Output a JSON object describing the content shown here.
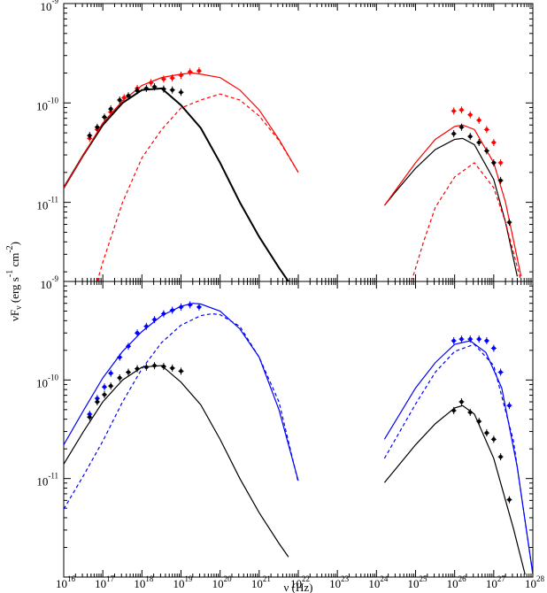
{
  "chart_data": [
    {
      "type": "line",
      "log_x": true,
      "log_y": true,
      "minor_ticks": true,
      "xlim": [
        1e+16,
        1e+28
      ],
      "ylim": [
        1.6e-12,
        1e-09
      ],
      "xticks": [
        1e+16,
        1e+17,
        1e+18,
        1e+19,
        1e+20,
        1e+21,
        1e+22,
        1e+23,
        1e+24,
        1e+25,
        1e+26,
        1e+27,
        1e+28
      ],
      "yticks": [
        {
          "value": 1e-11,
          "label": "10",
          "exponent": "-11"
        },
        {
          "value": 1e-10,
          "label": "10",
          "exponent": "-10"
        },
        {
          "value": 1e-09,
          "label": "10",
          "exponent": "-9"
        }
      ],
      "ylabel": [
        {
          "text": "νF"
        },
        {
          "text": "ν",
          "shift": "sub"
        },
        {
          "text": " (erg s"
        },
        {
          "text": "-1",
          "shift": "sup"
        },
        {
          "text": " cm"
        },
        {
          "text": "-2",
          "shift": "sup"
        },
        {
          "text": ")"
        }
      ],
      "series": [
        {
          "style": "solid",
          "color": "#000000",
          "width": 2,
          "x": [
            1e+16,
            3.2e+16,
            1e+17,
            3.2e+17,
            1e+18,
            3.2e+18,
            1e+19,
            3.2e+19,
            1e+20,
            3.2e+20,
            1e+21,
            3.2e+21,
            5.6e+21
          ],
          "values": [
            1.4e-11,
            3e-11,
            6e-11,
            1e-10,
            1.35e-10,
            1.4e-10,
            9.5e-11,
            5.6e-11,
            2.5e-11,
            1e-11,
            4.5e-12,
            2.2e-12,
            1.6e-12
          ]
        },
        {
          "style": "solid",
          "color": "#ff0000",
          "width": 1.2,
          "x": [
            1e+16,
            3.2e+16,
            1e+17,
            3.2e+17,
            1e+18,
            3.2e+18,
            1e+19,
            2e+19,
            3.2e+19,
            1e+20,
            3.2e+20,
            1e+21,
            3.2e+21,
            1e+22
          ],
          "values": [
            1.4e-11,
            3e-11,
            6.3e-11,
            1.05e-10,
            1.5e-10,
            1.8e-10,
            1.95e-10,
            2e-10,
            1.95e-10,
            1.8e-10,
            1.35e-10,
            8.5e-11,
            4.3e-11,
            2e-11
          ]
        },
        {
          "style": "dashed",
          "color": "#ff0000",
          "width": 1.2,
          "x": [
            7.2e+16,
            1e+17,
            3.2e+17,
            1e+18,
            3.2e+18,
            1e+19,
            3.2e+19,
            1e+20,
            3.2e+20,
            1e+21,
            3.2e+21,
            1e+22
          ],
          "values": [
            1.6e-12,
            2.5e-12,
            1e-11,
            2.8e-11,
            5.4e-11,
            8.9e-11,
            1.07e-10,
            1.23e-10,
            1.07e-10,
            7.4e-11,
            4.2e-11,
            2e-11
          ]
        },
        {
          "style": "solid",
          "color": "#000000",
          "width": 1.2,
          "x": [
            1.6e+24,
            3.2e+24,
            1e+25,
            3.2e+25,
            1e+26,
            1.6e+26,
            3.2e+26,
            1e+27,
            2e+27,
            4e+27
          ],
          "values": [
            9.3e-12,
            1.3e-11,
            2.2e-11,
            3.4e-11,
            4.3e-11,
            4.4e-11,
            3.8e-11,
            1.7e-11,
            6.3e-12,
            1.8e-12
          ]
        },
        {
          "style": "solid",
          "color": "#ff0000",
          "width": 1.2,
          "x": [
            1.6e+24,
            1e+25,
            3.2e+25,
            1e+26,
            1.6e+26,
            3.2e+26,
            1e+27,
            2e+27,
            5e+27
          ],
          "values": [
            9.3e-12,
            2.5e-11,
            4.3e-11,
            5.8e-11,
            6e-11,
            5.4e-11,
            2.5e-11,
            1e-11,
            1.8e-12
          ]
        },
        {
          "style": "dashed",
          "color": "#ff0000",
          "width": 1.2,
          "x": [
            7.9e+24,
            1.6e+25,
            3.2e+25,
            1e+26,
            3.2e+26,
            1e+27,
            2e+27,
            5e+27
          ],
          "values": [
            1.6e-12,
            4e-12,
            8.9e-12,
            1.8e-11,
            2.5e-11,
            1.4e-11,
            6.3e-12,
            1.6e-12
          ]
        },
        {
          "style": "markers",
          "color": "#ff0000",
          "x": [
            4.6e+16,
            7.2e+16,
            1.6e+17,
            3.5e+17,
            7.6e+17,
            1.7e+18,
            3.6e+18,
            6e+18,
            1e+19,
            1.7e+19,
            2.9e+19
          ],
          "values": [
            4.4e-11,
            5.4e-11,
            8.1e-11,
            1.13e-10,
            1.4e-10,
            1.6e-10,
            1.74e-10,
            1.78e-10,
            1.9e-10,
            2.05e-10,
            2.1e-10
          ]
        },
        {
          "style": "markers",
          "color": "#000000",
          "x": [
            4.6e+16,
            7.2e+16,
            1.1e+17,
            1.6e+17,
            2.7e+17,
            4.5e+17,
            7.6e+17,
            1.3e+18,
            2.1e+18,
            3.6e+18,
            6e+18,
            1e+19
          ],
          "values": [
            4.7e-11,
            5.7e-11,
            7.2e-11,
            8.7e-11,
            1.07e-10,
            1.18e-10,
            1.33e-10,
            1.4e-10,
            1.45e-10,
            1.38e-10,
            1.35e-10,
            1.28e-10
          ]
        },
        {
          "style": "markers",
          "color": "#ff0000",
          "x": [
            9.5e+25,
            1.5e+26,
            2.5e+26,
            4.2e+26,
            6.6e+26,
            1e+27,
            1.5e+27
          ],
          "values": [
            8.3e-11,
            8.5e-11,
            7.6e-11,
            6.7e-11,
            5.4e-11,
            4e-11,
            2.5e-11
          ]
        },
        {
          "style": "markers",
          "color": "#000000",
          "x": [
            9.5e+25,
            1.5e+26,
            2.5e+26,
            4.2e+26,
            6.6e+26,
            1e+27,
            1.5e+27,
            2.5e+27
          ],
          "values": [
            4.9e-11,
            5.7e-11,
            4.6e-11,
            4e-11,
            3.3e-11,
            2.5e-11,
            1.66e-11,
            6.3e-12
          ]
        }
      ]
    },
    {
      "type": "line",
      "log_x": true,
      "log_y": true,
      "minor_ticks": true,
      "xlim": [
        1e+16,
        1e+28
      ],
      "ylim": [
        1e-12,
        1e-09
      ],
      "xticks": [
        {
          "value": 1e+16,
          "label": "10",
          "exponent": "16"
        },
        {
          "value": 1e+17,
          "label": "10",
          "exponent": "17"
        },
        {
          "value": 1e+18,
          "label": "10",
          "exponent": "18"
        },
        {
          "value": 1e+19,
          "label": "10",
          "exponent": "19"
        },
        {
          "value": 1e+20,
          "label": "10",
          "exponent": "20"
        },
        {
          "value": 1e+21,
          "label": "10",
          "exponent": "21"
        },
        {
          "value": 1e+22,
          "label": "10",
          "exponent": "22"
        },
        {
          "value": 1e+23,
          "label": "10",
          "exponent": "23"
        },
        {
          "value": 1e+24,
          "label": "10",
          "exponent": "24"
        },
        {
          "value": 1e+25,
          "label": "10",
          "exponent": "25"
        },
        {
          "value": 1e+26,
          "label": "10",
          "exponent": "26"
        },
        {
          "value": 1e+27,
          "label": "10",
          "exponent": "27"
        },
        {
          "value": 1e+28,
          "label": "10",
          "exponent": "28"
        }
      ],
      "yticks": [
        {
          "value": 1e-11,
          "label": "10",
          "exponent": "-11"
        },
        {
          "value": 1e-10,
          "label": "10",
          "exponent": "-10"
        },
        {
          "value": 1e-09,
          "label": "10",
          "exponent": "-9"
        }
      ],
      "xlabel": "ν (Hz)",
      "series": [
        {
          "style": "solid",
          "color": "#000000",
          "width": 1.2,
          "x": [
            1e+16,
            3.2e+16,
            1e+17,
            3.2e+17,
            1e+18,
            3.2e+18,
            1e+19,
            3.2e+19,
            1e+20,
            3.2e+20,
            1e+21,
            3.2e+21,
            5.6e+21
          ],
          "values": [
            1.4e-11,
            3e-11,
            6e-11,
            1e-10,
            1.35e-10,
            1.4e-10,
            9.5e-11,
            5.6e-11,
            2.5e-11,
            1e-11,
            4.5e-12,
            2.2e-12,
            1.6e-12
          ]
        },
        {
          "style": "solid",
          "color": "#0000ff",
          "width": 1.2,
          "x": [
            1e+16,
            3.2e+16,
            1e+17,
            3.2e+17,
            1e+18,
            3.2e+18,
            1e+19,
            2e+19,
            3.2e+19,
            1e+20,
            3.2e+20,
            1e+21,
            3.2e+21,
            1e+22
          ],
          "values": [
            2.2e-11,
            4.9e-11,
            1.05e-10,
            1.95e-10,
            3.1e-10,
            4.5e-10,
            5.6e-10,
            6e-10,
            5.9e-10,
            5e-10,
            3.3e-10,
            1.7e-10,
            5e-11,
            9.5e-12
          ]
        },
        {
          "style": "dashed",
          "color": "#0000ff",
          "width": 1.2,
          "x": [
            1e+16,
            3.2e+16,
            1e+17,
            3.2e+17,
            1e+18,
            3.2e+18,
            1e+19,
            3.2e+19,
            6.3e+19,
            1e+20,
            3.2e+20,
            1e+21,
            3.2e+21,
            1e+22
          ],
          "values": [
            4.9e-12,
            1.07e-11,
            2.4e-11,
            6e-11,
            1.3e-10,
            2.4e-10,
            3.6e-10,
            4.5e-10,
            4.7e-10,
            4.6e-10,
            3.5e-10,
            1.7e-10,
            6e-11,
            9.1e-12
          ]
        },
        {
          "style": "solid",
          "color": "#0000ff",
          "width": 1.2,
          "x": [
            1.6e+24,
            1e+25,
            3.2e+25,
            1e+26,
            2.5e+26,
            6.3e+26,
            1.6e+27,
            4e+27,
            1e+28
          ],
          "values": [
            2.5e-11,
            8.3e-11,
            1.5e-10,
            2.3e-10,
            2.5e-10,
            1.9e-10,
            8.3e-11,
            1.3e-11,
            1.07e-12
          ]
        },
        {
          "style": "dashed",
          "color": "#0000ff",
          "width": 1.2,
          "x": [
            1.6e+24,
            1e+25,
            3.2e+25,
            1e+26,
            3.2e+26,
            1e+27,
            3.2e+27,
            1e+28
          ],
          "values": [
            1.6e-11,
            5.7e-11,
            1.2e-10,
            1.95e-10,
            2.3e-10,
            1.4e-10,
            2.4e-11,
            1.07e-12
          ]
        },
        {
          "style": "solid",
          "color": "#000000",
          "width": 1.2,
          "x": [
            1.6e+24,
            1e+25,
            3.2e+25,
            1e+26,
            1.6e+26,
            3.2e+26,
            1e+27,
            3.2e+27,
            6.3e+27
          ],
          "values": [
            9.1e-12,
            2.2e-11,
            3.6e-11,
            5.2e-11,
            5.5e-11,
            4.5e-11,
            1.6e-11,
            3.1e-12,
            1.07e-12
          ]
        },
        {
          "style": "markers",
          "color": "#0000ff",
          "x": [
            4.6e+16,
            7.2e+16,
            1.1e+17,
            1.6e+17,
            2.7e+17,
            4.5e+17,
            7.6e+17,
            1.3e+18,
            2.1e+18,
            3.6e+18,
            6e+18,
            1e+19,
            1.7e+19,
            2.9e+19
          ],
          "values": [
            4.5e-11,
            6.5e-11,
            8.5e-11,
            1.17e-10,
            1.7e-10,
            2.2e-10,
            3e-10,
            3.5e-10,
            4.1e-10,
            4.7e-10,
            5.1e-10,
            5.5e-10,
            5.8e-10,
            5.5e-10
          ]
        },
        {
          "style": "markers",
          "color": "#000000",
          "x": [
            4.6e+16,
            7.2e+16,
            1.1e+17,
            1.6e+17,
            2.7e+17,
            4.5e+17,
            7.6e+17,
            1.3e+18,
            2.1e+18,
            3.6e+18,
            6e+18,
            1e+19
          ],
          "values": [
            4.2e-11,
            6e-11,
            7.1e-11,
            8.7e-11,
            1.05e-10,
            1.2e-10,
            1.3e-10,
            1.35e-10,
            1.4e-10,
            1.37e-10,
            1.32e-10,
            1.23e-10
          ]
        },
        {
          "style": "markers",
          "color": "#0000ff",
          "x": [
            9.5e+25,
            1.5e+26,
            2.5e+26,
            4.2e+26,
            6.6e+26,
            1e+27,
            1.5e+27,
            2.5e+27
          ],
          "values": [
            2.5e-10,
            2.6e-10,
            2.6e-10,
            2.6e-10,
            2.5e-10,
            2.1e-10,
            1.2e-10,
            5.5e-11
          ]
        },
        {
          "style": "markers",
          "color": "#000000",
          "x": [
            9.5e+25,
            1.5e+26,
            2.5e+26,
            4.2e+26,
            6.6e+26,
            1e+27,
            1.5e+27,
            2.5e+27
          ],
          "values": [
            4.9e-11,
            6e-11,
            4.7e-11,
            3.8e-11,
            2.9e-11,
            2.5e-11,
            1.66e-11,
            6.1e-12
          ]
        }
      ]
    }
  ]
}
